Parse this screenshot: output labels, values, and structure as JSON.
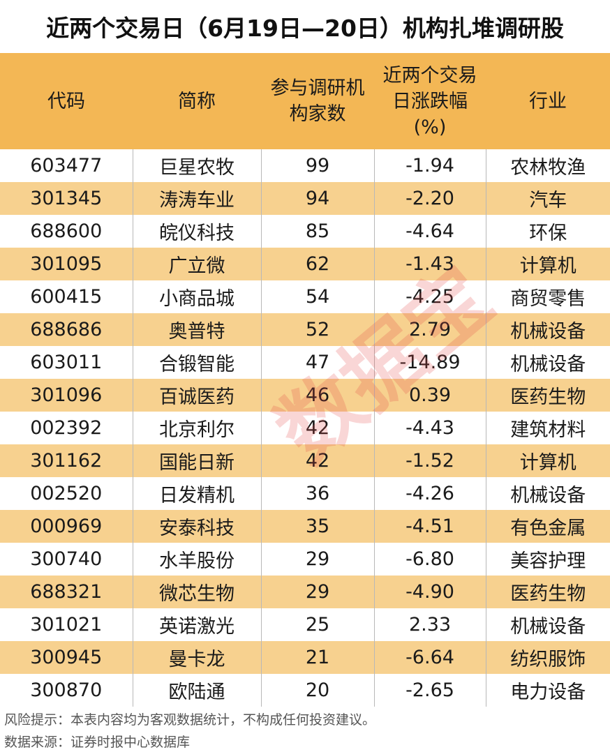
{
  "title": "近两个交易日（6月19日—20日）机构扎堆调研股",
  "headers": [
    "代码",
    "简称",
    "参与调研机构家数",
    "近两个交易日涨跌幅(%)",
    "行业"
  ],
  "header_lines": {
    "col3": [
      "参与调研机",
      "构家数"
    ],
    "col4": [
      "近两个交易",
      "日涨跌幅",
      "(%)"
    ]
  },
  "rows": [
    [
      "603477",
      "巨星农牧",
      "99",
      "-1.94",
      "农林牧渔"
    ],
    [
      "301345",
      "涛涛车业",
      "94",
      "-2.20",
      "汽车"
    ],
    [
      "688600",
      "皖仪科技",
      "85",
      "-4.64",
      "环保"
    ],
    [
      "301095",
      "广立微",
      "62",
      "-1.43",
      "计算机"
    ],
    [
      "600415",
      "小商品城",
      "54",
      "-4.25",
      "商贸零售"
    ],
    [
      "688686",
      "奥普特",
      "52",
      "2.79",
      "机械设备"
    ],
    [
      "603011",
      "合锻智能",
      "47",
      "-14.89",
      "机械设备"
    ],
    [
      "301096",
      "百诚医药",
      "46",
      "0.39",
      "医药生物"
    ],
    [
      "002392",
      "北京利尔",
      "42",
      "-4.43",
      "建筑材料"
    ],
    [
      "301162",
      "国能日新",
      "42",
      "-1.52",
      "计算机"
    ],
    [
      "002520",
      "日发精机",
      "36",
      "-4.26",
      "机械设备"
    ],
    [
      "000969",
      "安泰科技",
      "35",
      "-4.51",
      "有色金属"
    ],
    [
      "300740",
      "水羊股份",
      "29",
      "-6.80",
      "美容护理"
    ],
    [
      "688321",
      "微芯生物",
      "29",
      "-4.90",
      "医药生物"
    ],
    [
      "301021",
      "英诺激光",
      "25",
      "2.33",
      "机械设备"
    ],
    [
      "300945",
      "曼卡龙",
      "21",
      "-6.64",
      "纺织服饰"
    ],
    [
      "300870",
      "欧陆通",
      "20",
      "-2.65",
      "电力设备"
    ]
  ],
  "watermark": "数据宝",
  "footnotes": [
    "风险提示：本表内容均为客观数据统计，不构成任何投资建议。",
    "数据来源：证券时报中心数据库"
  ],
  "colors": {
    "header_bg": "#f3b755",
    "stripe_bg": "#f7d18f",
    "watermark": "#e24444"
  }
}
